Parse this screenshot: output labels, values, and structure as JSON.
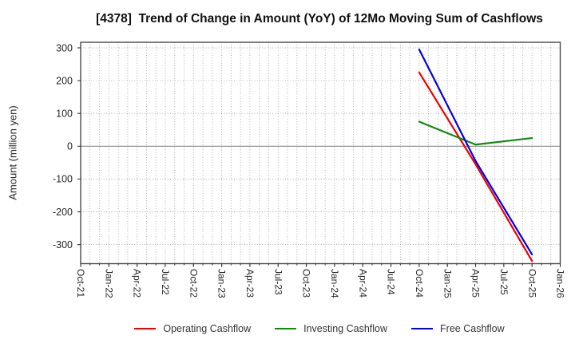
{
  "chart_data": {
    "type": "line",
    "title": "[4378]  Trend of Change in Amount (YoY) of 12Mo Moving Sum of Cashflows",
    "xlabel": "",
    "ylabel": "Amount (million yen)",
    "x_tick_labels": [
      "Oct-21",
      "Jan-22",
      "Apr-22",
      "Jul-22",
      "Oct-22",
      "Jan-23",
      "Apr-23",
      "Jul-23",
      "Oct-23",
      "Jan-24",
      "Apr-24",
      "Jul-24",
      "Oct-24",
      "Jan-25",
      "Apr-25",
      "Jul-25",
      "Oct-25",
      "Jan-26"
    ],
    "x_tick_months": [
      0,
      3,
      6,
      9,
      12,
      15,
      18,
      21,
      24,
      27,
      30,
      33,
      36,
      39,
      42,
      45,
      48,
      51
    ],
    "xlim_months": [
      0,
      51
    ],
    "ylim": [
      -358,
      317
    ],
    "yticks": [
      300,
      200,
      100,
      0,
      -100,
      -200,
      -300
    ],
    "grid": "dotted gray; vertical line every month, horizontal every 100; solid line at zero",
    "legend_position": "bottom",
    "series": [
      {
        "name": "Operating Cashflow",
        "color": "#ee0000",
        "x_labels": [
          "Oct-24",
          "Apr-25",
          "Oct-25"
        ],
        "x_months": [
          36,
          42,
          48
        ],
        "values": [
          225,
          -55,
          -350
        ]
      },
      {
        "name": "Investing Cashflow",
        "color": "#118811",
        "x_labels": [
          "Oct-24",
          "Apr-25",
          "Oct-25"
        ],
        "x_months": [
          36,
          42,
          48
        ],
        "values": [
          75,
          5,
          25
        ]
      },
      {
        "name": "Free Cashflow",
        "color": "#0000ee",
        "x_labels": [
          "Oct-24",
          "Apr-25",
          "Oct-25"
        ],
        "x_months": [
          36,
          42,
          48
        ],
        "values": [
          295,
          -45,
          -330
        ]
      }
    ]
  }
}
